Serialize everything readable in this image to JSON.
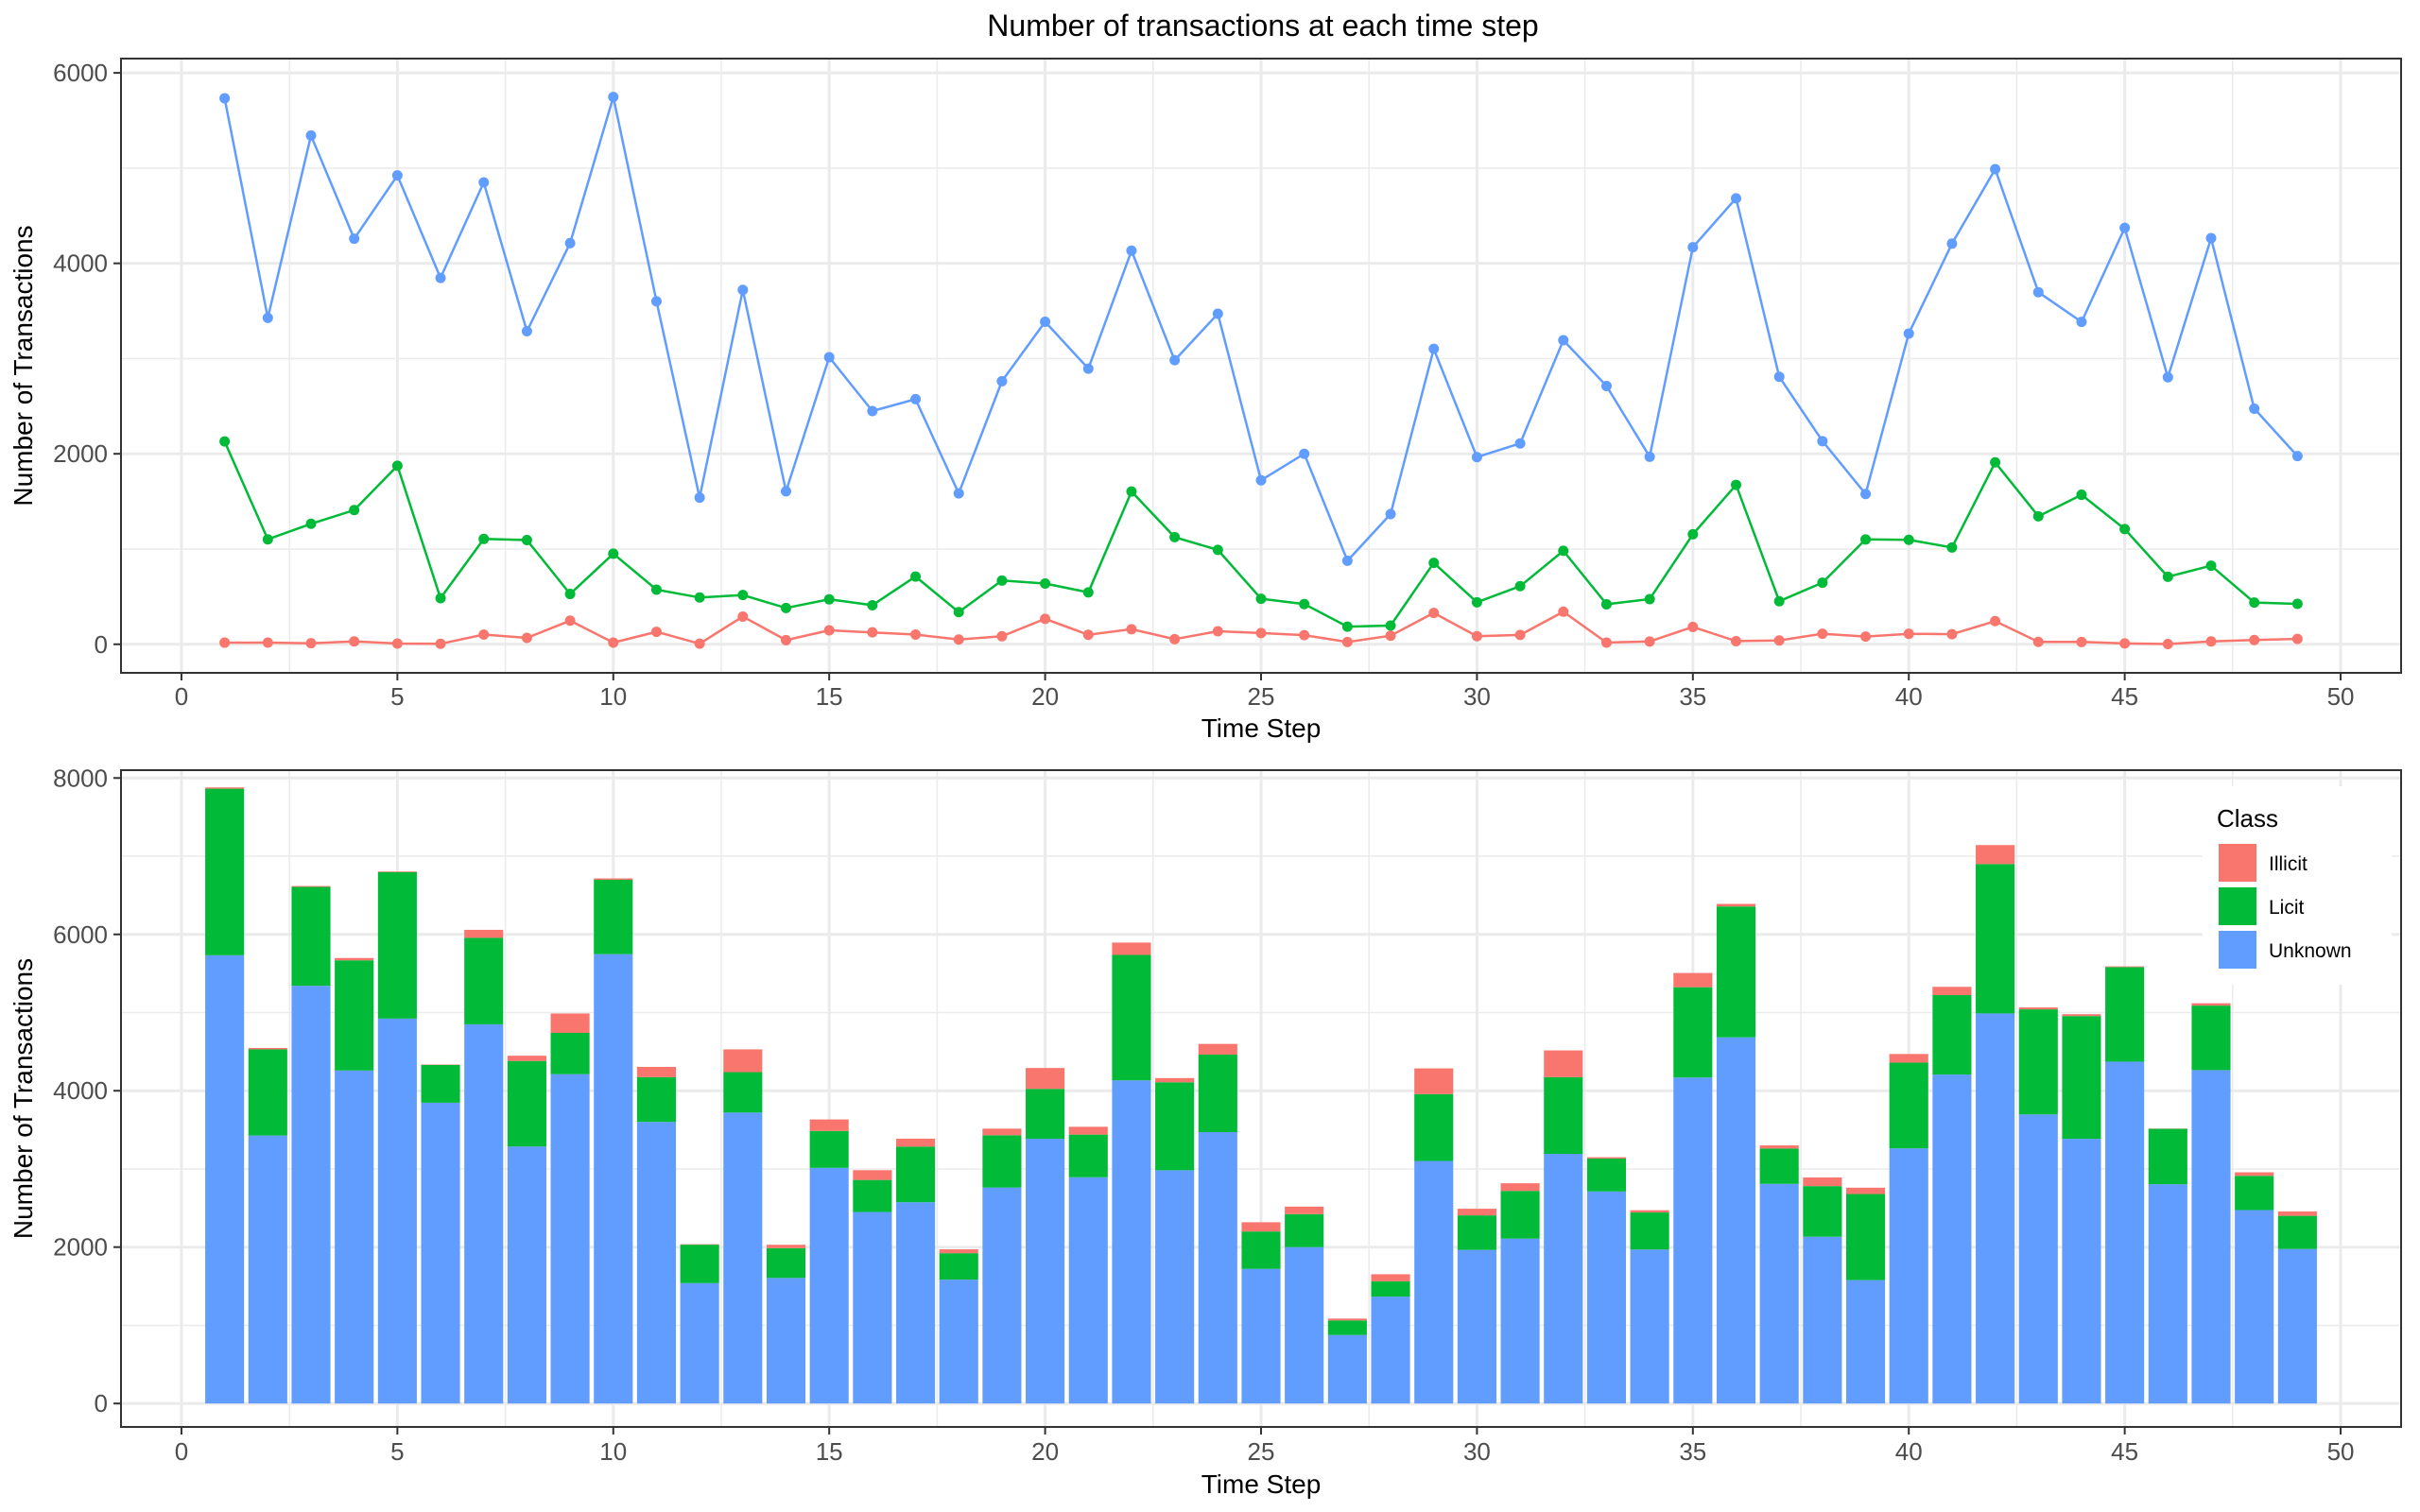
{
  "title": "Number of transactions at each time step",
  "colors": {
    "illicit": "#F8766D",
    "licit": "#00BA38",
    "unknown": "#619CFF",
    "grid": "#EBEBEB",
    "panel_border": "#333333",
    "text": "#000000",
    "tick_text": "#4D4D4D"
  },
  "chart_data": [
    {
      "type": "line",
      "xlabel": "Time Step",
      "ylabel": "Number of Transactions",
      "xlim": [
        -1.4,
        51.4
      ],
      "ylim": [
        -300,
        6150
      ],
      "xticks": [
        0,
        5,
        10,
        15,
        20,
        25,
        30,
        35,
        40,
        45,
        50
      ],
      "yticks": [
        0,
        2000,
        4000,
        6000
      ],
      "grid": true,
      "markers": true,
      "x": [
        1,
        2,
        3,
        4,
        5,
        6,
        7,
        8,
        9,
        10,
        11,
        12,
        13,
        14,
        15,
        16,
        17,
        18,
        19,
        20,
        21,
        22,
        23,
        24,
        25,
        26,
        27,
        28,
        29,
        30,
        31,
        32,
        33,
        34,
        35,
        36,
        37,
        38,
        39,
        40,
        41,
        42,
        43,
        44,
        45,
        46,
        47,
        48,
        49
      ],
      "series": [
        {
          "key": "unknown",
          "values": [
            5733,
            3427,
            5342,
            4259,
            4923,
            3847,
            4850,
            3287,
            4212,
            5747,
            3601,
            1540,
            3721,
            1606,
            3014,
            2449,
            2574,
            1584,
            2762,
            3386,
            2894,
            4133,
            2983,
            3471,
            1722,
            2000,
            877,
            1367,
            3102,
            1965,
            2109,
            3193,
            2712,
            1969,
            4169,
            4683,
            2809,
            2133,
            1578,
            3263,
            4207,
            4989,
            3697,
            3385,
            4372,
            2804,
            4264,
            2474,
            1976
          ]
        },
        {
          "key": "licit",
          "values": [
            2130,
            1102,
            1265,
            1409,
            1874,
            484,
            1106,
            1094,
            528,
            951,
            573,
            491,
            517,
            381,
            472,
            410,
            711,
            338,
            669,
            638,
            545,
            1604,
            1125,
            991,
            478,
            422,
            185,
            196,
            855,
            441,
            610,
            981,
            420,
            474,
            1155,
            1674,
            452,
            647,
            1101,
            1097,
            1016,
            1910,
            1344,
            1570,
            1210,
            709,
            825,
            438,
            424
          ]
        },
        {
          "key": "illicit",
          "values": [
            17,
            18,
            11,
            30,
            8,
            5,
            102,
            67,
            248,
            18,
            131,
            6,
            291,
            43,
            147,
            125,
            102,
            50,
            84,
            267,
            100,
            158,
            54,
            137,
            118,
            96,
            24,
            90,
            329,
            85,
            98,
            342,
            18,
            29,
            182,
            33,
            40,
            111,
            81,
            110,
            106,
            243,
            25,
            24,
            9,
            3,
            30,
            45,
            56
          ]
        }
      ]
    },
    {
      "type": "bar",
      "stacked": true,
      "xlabel": "Time Step",
      "ylabel": "Number of Transactions",
      "xlim": [
        -1.4,
        51.4
      ],
      "ylim": [
        -300,
        8100
      ],
      "xticks": [
        0,
        5,
        10,
        15,
        20,
        25,
        30,
        35,
        40,
        45,
        50
      ],
      "yticks": [
        0,
        2000,
        4000,
        6000,
        8000
      ],
      "grid": true,
      "stack_order": [
        "unknown",
        "licit",
        "illicit"
      ],
      "legend": {
        "title": "Class",
        "position": "top-right",
        "items": [
          {
            "key": "illicit",
            "label": "Illicit"
          },
          {
            "key": "licit",
            "label": "Licit"
          },
          {
            "key": "unknown",
            "label": "Unknown"
          }
        ]
      }
    }
  ]
}
